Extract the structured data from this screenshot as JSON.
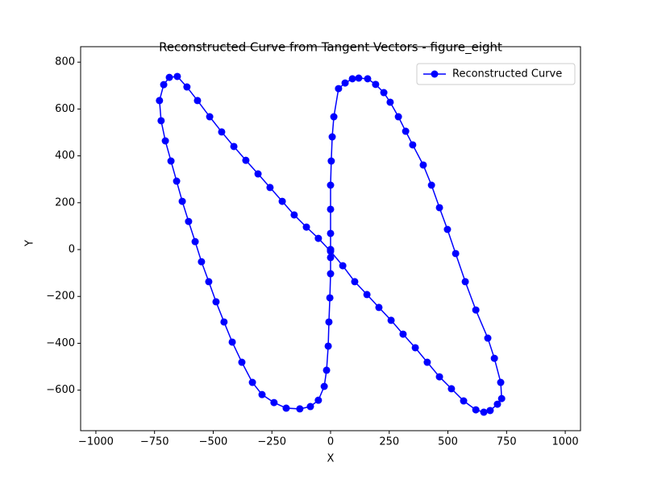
{
  "chart_data": {
    "type": "line",
    "title": "Reconstructed Curve from Tangent Vectors - figure_eight",
    "x_label": "X",
    "y_label": "Y",
    "xlim": [
      -1065,
      1065
    ],
    "ylim": [
      -773,
      866
    ],
    "xticks": [
      {
        "value": -1000,
        "label": "−1000"
      },
      {
        "value": -750,
        "label": "−750"
      },
      {
        "value": -500,
        "label": "−500"
      },
      {
        "value": -250,
        "label": "−250"
      },
      0,
      250,
      500,
      750,
      1000
    ],
    "yticks": [
      {
        "value": -600,
        "label": "−600"
      },
      {
        "value": -400,
        "label": "−400"
      },
      {
        "value": -200,
        "label": "−200"
      },
      0,
      200,
      400,
      600,
      800
    ],
    "legend": "upper right",
    "series": [
      {
        "name": "Reconstructed Curve",
        "color": "#0000ff",
        "x": [
          0,
          0,
          0,
          0,
          3,
          7,
          14,
          34,
          62,
          93,
          120,
          158,
          192,
          227,
          254,
          289,
          320,
          350,
          395,
          430,
          464,
          498,
          533,
          574,
          619,
          670,
          698,
          725,
          729,
          711,
          680,
          653,
          619,
          567,
          515,
          464,
          412,
          361,
          309,
          258,
          206,
          155,
          103,
          52,
          0,
          -52,
          -103,
          -155,
          -206,
          -258,
          -309,
          -361,
          -412,
          -464,
          -515,
          -567,
          -612,
          -653,
          -687,
          -711,
          -729,
          -722,
          -704,
          -680,
          -656,
          -632,
          -605,
          -577,
          -550,
          -519,
          -488,
          -454,
          -419,
          -378,
          -333,
          -292,
          -241,
          -189,
          -131,
          -86,
          -52,
          -27,
          -17,
          -10,
          -7,
          -3,
          0,
          0,
          0
        ],
        "values": [
          0,
          69,
          172,
          275,
          378,
          481,
          567,
          687,
          711,
          729,
          732,
          729,
          705,
          670,
          629,
          567,
          505,
          447,
          361,
          275,
          179,
          86,
          -17,
          -137,
          -258,
          -378,
          -464,
          -567,
          -636,
          -660,
          -687,
          -694,
          -684,
          -646,
          -594,
          -543,
          -481,
          -419,
          -361,
          -302,
          -247,
          -192,
          -137,
          -69,
          -7,
          48,
          96,
          148,
          206,
          265,
          323,
          381,
          440,
          502,
          567,
          636,
          694,
          739,
          735,
          704,
          636,
          550,
          464,
          378,
          292,
          206,
          120,
          34,
          -52,
          -137,
          -223,
          -309,
          -395,
          -481,
          -567,
          -619,
          -653,
          -677,
          -680,
          -670,
          -643,
          -584,
          -515,
          -412,
          -309,
          -206,
          -103,
          -34,
          0
        ]
      }
    ]
  }
}
